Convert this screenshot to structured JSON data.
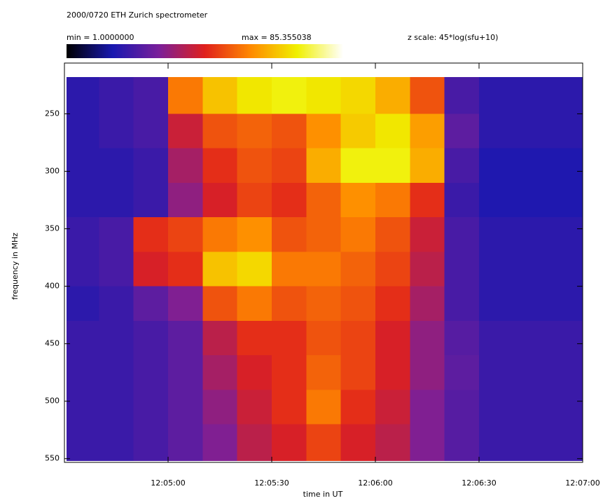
{
  "chart_data": {
    "type": "heatmap",
    "title": "2000/0720  ETH Zurich spectrometer",
    "colorbar": {
      "min": {
        "value": 1,
        "label": "min = 1.0000000"
      },
      "max": {
        "value": 85.355038,
        "label": "max = 85.355038"
      },
      "scale_label": "z scale: 45*log(sfu+10)"
    },
    "colormap": [
      "#000000",
      "#1818b0",
      "#7a1f9a",
      "#e0201c",
      "#ff8a00",
      "#f0f000",
      "#ffffff"
    ],
    "x_label": "time in UT",
    "y_label": "frequency in MHz",
    "x_edges": [
      270,
      280,
      290,
      300,
      310,
      320,
      330,
      340,
      350,
      360,
      370,
      380,
      390,
      400,
      410,
      420
    ],
    "y_edges": [
      218,
      250,
      280,
      310,
      340,
      370,
      400,
      430,
      460,
      490,
      520,
      552
    ],
    "xlim": [
      270,
      420
    ],
    "ylim": [
      218,
      552
    ],
    "xticks": [
      {
        "value": 300,
        "label": "12:05:00"
      },
      {
        "value": 330,
        "label": "12:05:30"
      },
      {
        "value": 360,
        "label": "12:06:00"
      },
      {
        "value": 390,
        "label": "12:06:30"
      },
      {
        "value": 420,
        "label": "12:07:00"
      }
    ],
    "yticks": [
      250,
      300,
      350,
      400,
      450,
      500,
      550
    ],
    "values": [
      [
        18,
        20,
        22,
        55,
        65,
        70,
        72,
        70,
        68,
        62,
        50,
        22,
        18,
        18,
        18
      ],
      [
        18,
        20,
        22,
        40,
        50,
        52,
        50,
        58,
        66,
        70,
        60,
        25,
        18,
        18,
        18
      ],
      [
        18,
        18,
        20,
        35,
        45,
        50,
        48,
        62,
        72,
        72,
        62,
        22,
        16,
        16,
        16
      ],
      [
        18,
        18,
        20,
        32,
        42,
        48,
        45,
        52,
        58,
        55,
        45,
        20,
        16,
        16,
        16
      ],
      [
        20,
        22,
        45,
        48,
        55,
        58,
        50,
        52,
        55,
        50,
        40,
        22,
        18,
        18,
        18
      ],
      [
        20,
        22,
        42,
        45,
        65,
        68,
        55,
        55,
        52,
        48,
        38,
        22,
        18,
        18,
        18
      ],
      [
        18,
        20,
        25,
        30,
        50,
        55,
        50,
        52,
        50,
        45,
        35,
        22,
        18,
        18,
        18
      ],
      [
        20,
        20,
        22,
        25,
        38,
        45,
        45,
        50,
        48,
        42,
        32,
        24,
        20,
        20,
        20
      ],
      [
        20,
        20,
        22,
        25,
        35,
        42,
        45,
        52,
        48,
        42,
        32,
        25,
        20,
        20,
        20
      ],
      [
        20,
        20,
        22,
        25,
        32,
        40,
        45,
        55,
        45,
        40,
        30,
        24,
        20,
        20,
        20
      ],
      [
        20,
        20,
        22,
        25,
        30,
        38,
        42,
        48,
        42,
        38,
        30,
        24,
        20,
        20,
        20
      ]
    ]
  }
}
